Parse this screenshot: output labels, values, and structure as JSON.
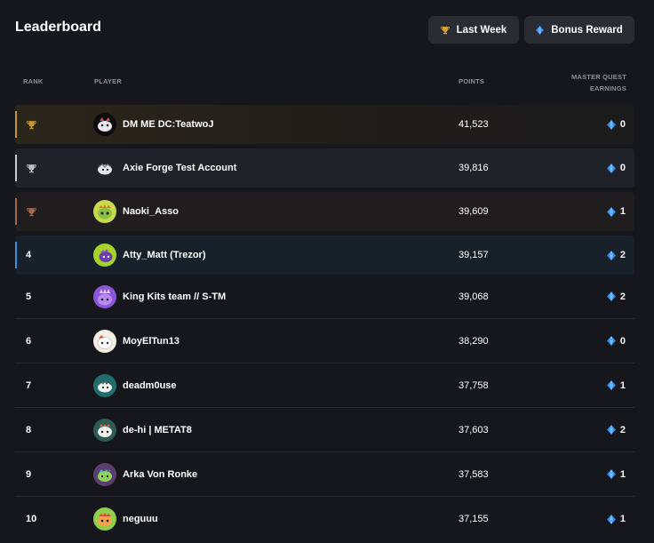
{
  "header": {
    "title": "Leaderboard",
    "last_week_label": "Last Week",
    "bonus_reward_label": "Bonus Reward"
  },
  "columns": {
    "rank": "RANK",
    "player": "PLAYER",
    "points": "POINTS",
    "earnings_line1": "MASTER QUEST",
    "earnings_line2": "EARNINGS"
  },
  "colors": {
    "gold": "#c8962a",
    "silver": "#c9ccd2",
    "bronze": "#a2684a",
    "fourth": "#3b8fd8",
    "gem": "#2f8cf0"
  },
  "rows": [
    {
      "rank": "",
      "trophy": "gold-trophy-icon",
      "name": "DM ME DC:TeatwoJ",
      "points": "41,523",
      "earnings": "0"
    },
    {
      "rank": "",
      "trophy": "silver-trophy-icon",
      "name": "Axie Forge Test Account",
      "points": "39,816",
      "earnings": "0"
    },
    {
      "rank": "",
      "trophy": "bronze-trophy-icon",
      "name": "Naoki_Asso",
      "points": "39,609",
      "earnings": "1"
    },
    {
      "rank": "4",
      "name": "Atty_Matt (Trezor)",
      "points": "39,157",
      "earnings": "2"
    },
    {
      "rank": "5",
      "name": "King Kits team // S-TM",
      "points": "39,068",
      "earnings": "2"
    },
    {
      "rank": "6",
      "name": "MoyElTun13",
      "points": "38,290",
      "earnings": "0"
    },
    {
      "rank": "7",
      "name": "deadm0use",
      "points": "37,758",
      "earnings": "1"
    },
    {
      "rank": "8",
      "name": "de-hi | METAT8",
      "points": "37,603",
      "earnings": "2"
    },
    {
      "rank": "9",
      "name": "Arka Von Ronke",
      "points": "37,583",
      "earnings": "1"
    },
    {
      "rank": "10",
      "name": "neguuu",
      "points": "37,155",
      "earnings": "1"
    }
  ]
}
